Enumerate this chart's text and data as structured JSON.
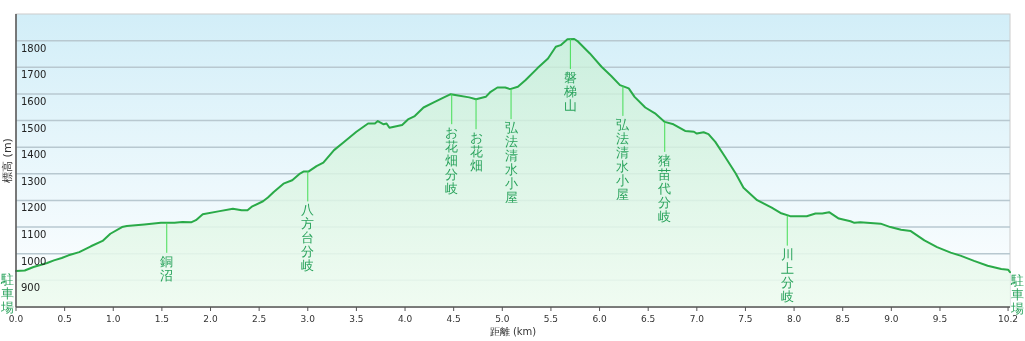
{
  "chart_data": {
    "type": "area",
    "xlabel": "距離 (km)",
    "ylabel": "標高 (m)",
    "color": "#2aaa48",
    "grid": "y",
    "xlim": [
      0,
      10.22
    ],
    "ylim": [
      800,
      1900
    ],
    "xticks": [
      {
        "value": 0,
        "label": "0.0"
      },
      0.5,
      {
        "value": 1,
        "label": "1.0"
      },
      1.5,
      {
        "value": 2,
        "label": "2.0"
      },
      2.5,
      {
        "value": 3,
        "label": "3.0"
      },
      3.5,
      {
        "value": 4,
        "label": "4.0"
      },
      4.5,
      {
        "value": 5,
        "label": "5.0"
      },
      5.5,
      {
        "value": 6,
        "label": "6.0"
      },
      6.5,
      {
        "value": 7,
        "label": "7.0"
      },
      7.5,
      {
        "value": 8,
        "label": "8.0"
      },
      8.5,
      {
        "value": 9,
        "label": "9.0"
      },
      9.5,
      10.2
    ],
    "yticks": [
      900,
      1000,
      1100,
      1200,
      1300,
      1400,
      1500,
      1600,
      1700,
      1800
    ],
    "x": [
      0,
      0.09,
      0.18,
      0.32,
      0.39,
      0.47,
      0.54,
      0.65,
      0.77,
      0.89,
      0.97,
      1.09,
      1.14,
      1.32,
      1.49,
      1.63,
      1.71,
      1.8,
      1.85,
      1.92,
      2.08,
      2.23,
      2.32,
      2.38,
      2.43,
      2.54,
      2.59,
      2.65,
      2.75,
      2.84,
      2.92,
      2.96,
      3.01,
      3.09,
      3.16,
      3.27,
      3.36,
      3.5,
      3.62,
      3.69,
      3.72,
      3.78,
      3.81,
      3.84,
      3.97,
      4.03,
      4.1,
      4.19,
      4.29,
      4.4,
      4.47,
      4.53,
      4.66,
      4.73,
      4.83,
      4.88,
      4.95,
      5.03,
      5.08,
      5.16,
      5.24,
      5.36,
      5.47,
      5.55,
      5.6,
      5.67,
      5.74,
      5.78,
      5.9,
      6.02,
      6.12,
      6.21,
      6.3,
      6.36,
      6.47,
      6.57,
      6.67,
      6.76,
      6.88,
      6.97,
      7.0,
      7.07,
      7.12,
      7.19,
      7.29,
      7.4,
      7.48,
      7.62,
      7.77,
      7.86,
      7.96,
      8.13,
      8.22,
      8.29,
      8.36,
      8.46,
      8.58,
      8.62,
      8.68,
      8.89,
      8.99,
      9.1,
      9.2,
      9.34,
      9.47,
      9.61,
      9.71,
      9.85,
      9.99,
      10.13,
      10.2,
      10.22
    ],
    "values": [
      935,
      937,
      950,
      965,
      975,
      984,
      994,
      1006,
      1028,
      1048,
      1075,
      1100,
      1104,
      1110,
      1116,
      1116,
      1119,
      1118,
      1126,
      1148,
      1159,
      1169,
      1163,
      1163,
      1178,
      1197,
      1211,
      1232,
      1263,
      1276,
      1301,
      1309,
      1309,
      1329,
      1342,
      1389,
      1416,
      1458,
      1489,
      1489,
      1498,
      1486,
      1489,
      1473,
      1483,
      1504,
      1517,
      1549,
      1567,
      1587,
      1599,
      1595,
      1587,
      1580,
      1589,
      1608,
      1624,
      1624,
      1618,
      1627,
      1652,
      1696,
      1733,
      1777,
      1783,
      1805,
      1806,
      1796,
      1752,
      1702,
      1667,
      1633,
      1621,
      1589,
      1549,
      1527,
      1495,
      1486,
      1461,
      1458,
      1451,
      1456,
      1449,
      1420,
      1364,
      1301,
      1248,
      1201,
      1173,
      1153,
      1141,
      1141,
      1151,
      1151,
      1156,
      1132,
      1122,
      1116,
      1118,
      1113,
      1100,
      1090,
      1085,
      1050,
      1025,
      1004,
      993,
      973,
      955,
      943,
      940,
      931
    ],
    "annotations": [
      {
        "text": "駐車場",
        "x": 0,
        "y": 935
      },
      {
        "text": "銅沼",
        "x": 1.55,
        "y": 1116
      },
      {
        "text": "八方台分岐",
        "x": 3.0,
        "y": 1309
      },
      {
        "text": "お花畑分岐",
        "x": 4.48,
        "y": 1599
      },
      {
        "text": "お花畑",
        "x": 4.73,
        "y": 1580
      },
      {
        "text": "弘法清水小屋",
        "x": 5.09,
        "y": 1618
      },
      {
        "text": "磐梯山",
        "x": 5.7,
        "y": 1806
      },
      {
        "text": "弘法清水小屋",
        "x": 6.24,
        "y": 1630
      },
      {
        "text": "猪苗代分岐",
        "x": 6.67,
        "y": 1495
      },
      {
        "text": "川上分岐",
        "x": 7.93,
        "y": 1143
      },
      {
        "text": "駐車場",
        "x": 10.22,
        "y": 931
      }
    ]
  }
}
